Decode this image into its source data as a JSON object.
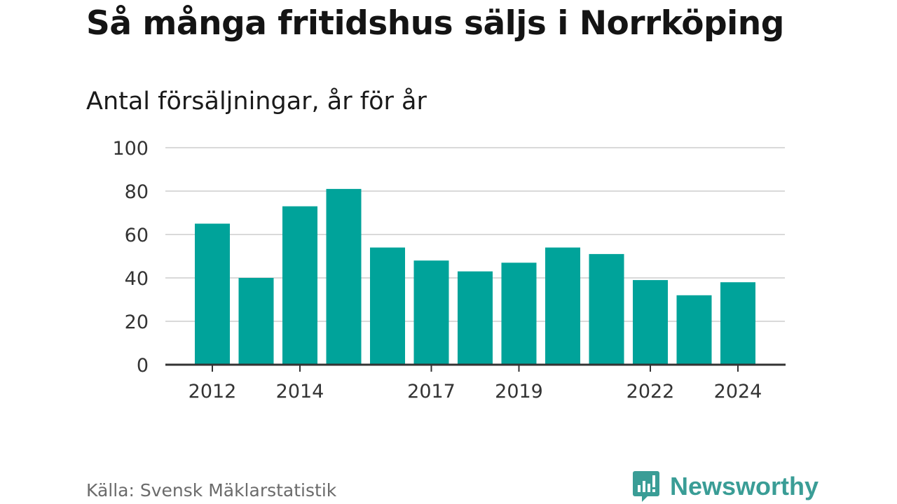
{
  "header": {
    "title": "Så många fritidshus säljs i Norrköping",
    "subtitle": "Antal försäljningar, år för år"
  },
  "footer": {
    "source": "Källa: Svensk Mäklarstatistik",
    "brand_name": "Newsworthy",
    "brand_icon": "newsworthy-logo-icon"
  },
  "colors": {
    "bar": "#00a39a",
    "grid": "#d9d9d9",
    "axis": "#333333",
    "brand": "#3a9d96"
  },
  "chart_data": {
    "type": "bar",
    "categories": [
      "2012",
      "2013",
      "2014",
      "2015",
      "2016",
      "2017",
      "2018",
      "2019",
      "2020",
      "2021",
      "2022",
      "2023",
      "2024"
    ],
    "values": [
      65,
      40,
      73,
      81,
      54,
      48,
      43,
      47,
      54,
      51,
      39,
      32,
      38
    ],
    "tick_labels_shown": [
      "2012",
      "2014",
      "2017",
      "2019",
      "2022",
      "2024"
    ],
    "title": "Så många fritidshus säljs i Norrköping",
    "subtitle": "Antal försäljningar, år för år",
    "xlabel": "",
    "ylabel": "",
    "ylim": [
      0,
      100
    ],
    "yticks": [
      0,
      20,
      40,
      60,
      80,
      100
    ],
    "grid": true,
    "legend": "none"
  }
}
